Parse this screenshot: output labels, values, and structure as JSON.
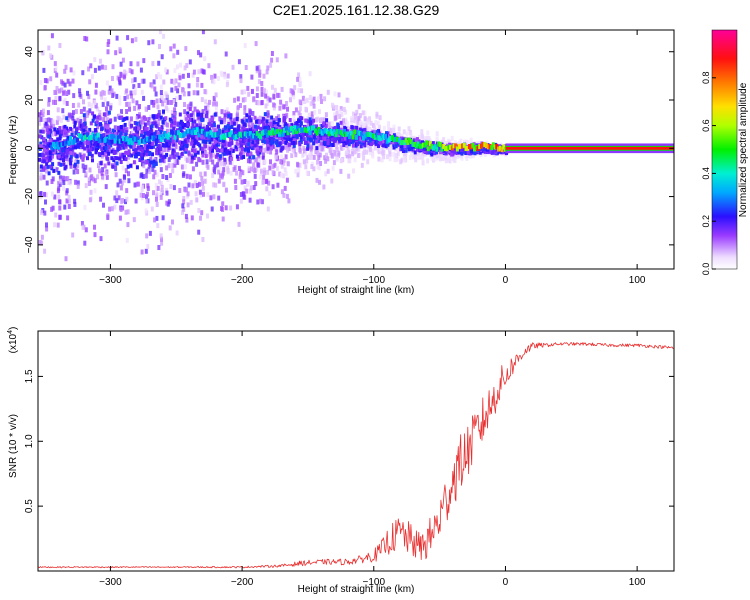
{
  "title": "C2E1.2025.161.12.38.G29",
  "chart_data": [
    {
      "type": "heatmap",
      "title": "C2E1.2025.161.12.38.G29",
      "xlabel": "Height of straight line (km)",
      "ylabel": "Frequency (Hz)",
      "xlim": [
        -355,
        128
      ],
      "ylim": [
        -50,
        49
      ],
      "xticks": [
        -300,
        -200,
        -100,
        0,
        100
      ],
      "yticks": [
        -40,
        -20,
        0,
        20,
        40
      ],
      "colorbar": {
        "label": "Normalized spectral amplitude",
        "range": [
          0,
          1
        ],
        "ticks": [
          0.0,
          0.2,
          0.4,
          0.6,
          0.8
        ]
      },
      "ridge": {
        "description": "dominant frequency ridge of the spectrogram",
        "x": [
          -345,
          -320,
          -300,
          -280,
          -260,
          -240,
          -220,
          -200,
          -180,
          -160,
          -140,
          -120,
          -100,
          -80,
          -60,
          -40,
          -20,
          0,
          128
        ],
        "freq": [
          1,
          5,
          4,
          3,
          5,
          7,
          6,
          5,
          6,
          8,
          7,
          6,
          5,
          3,
          1,
          0,
          1,
          0,
          0
        ],
        "peak_amplitude": [
          0.35,
          0.45,
          0.4,
          0.4,
          0.4,
          0.45,
          0.45,
          0.45,
          0.5,
          0.5,
          0.55,
          0.55,
          0.5,
          0.55,
          0.6,
          0.85,
          0.9,
          0.95,
          1.0
        ]
      },
      "scatter_extent": {
        "x": [
          -355,
          -320,
          -300,
          -280,
          -260,
          -240,
          -220,
          -200,
          -180,
          -160,
          -140,
          -120,
          -100,
          -80,
          -60,
          -40,
          -20,
          0
        ],
        "spread_hz": [
          48,
          48,
          48,
          48,
          48,
          45,
          42,
          40,
          35,
          28,
          22,
          16,
          10,
          8,
          6,
          5,
          3,
          2
        ]
      }
    },
    {
      "type": "line",
      "xlabel": "Height of straight line (km)",
      "ylabel": "SNR (10 * v/v)",
      "y_multiplier_label": "(x10",
      "y_multiplier_exp": "4",
      "xlim": [
        -355,
        128
      ],
      "ylim": [
        0,
        1.85
      ],
      "xticks": [
        -300,
        -200,
        -100,
        0,
        100
      ],
      "yticks": [
        0.5,
        1.0,
        1.5
      ],
      "color": "#e83030",
      "series": [
        {
          "name": "SNR",
          "x": [
            -355,
            -300,
            -250,
            -200,
            -170,
            -155,
            -140,
            -120,
            -110,
            -100,
            -95,
            -90,
            -85,
            -80,
            -75,
            -70,
            -65,
            -60,
            -55,
            -50,
            -45,
            -40,
            -35,
            -30,
            -25,
            -20,
            -15,
            -10,
            -5,
            0,
            5,
            10,
            15,
            20,
            25,
            30,
            40,
            60,
            80,
            100,
            128
          ],
          "y": [
            0.03,
            0.03,
            0.03,
            0.03,
            0.04,
            0.06,
            0.07,
            0.07,
            0.09,
            0.12,
            0.15,
            0.22,
            0.26,
            0.3,
            0.26,
            0.22,
            0.18,
            0.22,
            0.3,
            0.4,
            0.55,
            0.7,
            0.82,
            0.9,
            1.0,
            1.1,
            1.2,
            1.3,
            1.42,
            1.5,
            1.58,
            1.64,
            1.7,
            1.73,
            1.74,
            1.74,
            1.75,
            1.75,
            1.74,
            1.74,
            1.72
          ],
          "noise": [
            0.005,
            0.005,
            0.005,
            0.006,
            0.01,
            0.02,
            0.02,
            0.025,
            0.03,
            0.05,
            0.07,
            0.1,
            0.12,
            0.14,
            0.14,
            0.12,
            0.12,
            0.14,
            0.16,
            0.18,
            0.2,
            0.22,
            0.22,
            0.22,
            0.2,
            0.2,
            0.18,
            0.16,
            0.14,
            0.12,
            0.08,
            0.06,
            0.04,
            0.03,
            0.02,
            0.015,
            0.012,
            0.012,
            0.012,
            0.012,
            0.012
          ]
        }
      ]
    }
  ]
}
